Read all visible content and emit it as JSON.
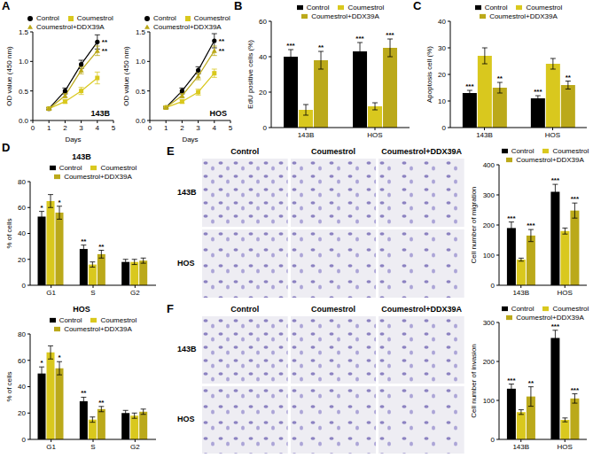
{
  "chart_data": [
    {
      "panel": "A",
      "type": "line",
      "annotation": "143B",
      "x_label": "Days",
      "y_label": "OD value (450 nm)",
      "x": [
        1,
        2,
        3,
        4
      ],
      "xlim": [
        0,
        5
      ],
      "xticks": [
        0,
        1,
        2,
        3,
        4,
        5
      ],
      "ylim": [
        0,
        1.5
      ],
      "yticks": [
        {
          "value": 0,
          "label": "0.0"
        },
        {
          "value": 0.5,
          "label": "0.5"
        },
        {
          "value": 1,
          "label": "1.0"
        },
        {
          "value": 1.5,
          "label": "1.5"
        }
      ],
      "legend": "top",
      "series": [
        {
          "name": "Control",
          "color": "#000000",
          "marker": "circle",
          "values": [
            0.2,
            0.5,
            0.95,
            1.33
          ],
          "errors": [
            0.02,
            0.05,
            0.07,
            0.12
          ],
          "significance": [
            null,
            null,
            null,
            "**"
          ]
        },
        {
          "name": "Coumestrol",
          "color": "#d9c81e",
          "marker": "square",
          "values": [
            0.2,
            0.32,
            0.5,
            0.72
          ],
          "errors": [
            0.02,
            0.03,
            0.06,
            0.1
          ],
          "significance": [
            null,
            null,
            null,
            null
          ]
        },
        {
          "name": "Coumestrol+DDX39A",
          "color": "#bba91a",
          "marker": "triangle",
          "values": [
            0.2,
            0.42,
            0.85,
            1.18
          ],
          "errors": [
            0.02,
            0.04,
            0.06,
            0.08
          ],
          "significance": [
            null,
            null,
            null,
            "**"
          ]
        }
      ]
    },
    {
      "panel": "A",
      "type": "line",
      "annotation": "HOS",
      "x_label": "Days",
      "y_label": "OD value (450 nm)",
      "x": [
        1,
        2,
        3,
        4
      ],
      "xlim": [
        0,
        5
      ],
      "xticks": [
        0,
        1,
        2,
        3,
        4,
        5
      ],
      "ylim": [
        0,
        1.5
      ],
      "yticks": [
        {
          "value": 0,
          "label": "0.0"
        },
        {
          "value": 0.5,
          "label": "0.5"
        },
        {
          "value": 1,
          "label": "1.0"
        },
        {
          "value": 1.5,
          "label": "1.5"
        }
      ],
      "legend": "top",
      "series": [
        {
          "name": "Control",
          "color": "#000000",
          "marker": "circle",
          "values": [
            0.22,
            0.5,
            0.85,
            1.35
          ],
          "errors": [
            0.02,
            0.05,
            0.06,
            0.12
          ],
          "significance": [
            null,
            null,
            null,
            "**"
          ]
        },
        {
          "name": "Coumestrol",
          "color": "#d9c81e",
          "marker": "square",
          "values": [
            0.22,
            0.32,
            0.48,
            0.8
          ],
          "errors": [
            0.02,
            0.03,
            0.05,
            0.07
          ],
          "significance": [
            null,
            null,
            null,
            null
          ]
        },
        {
          "name": "Coumestrol+DDX39A",
          "color": "#bba91a",
          "marker": "triangle",
          "values": [
            0.22,
            0.42,
            0.75,
            1.18
          ],
          "errors": [
            0.02,
            0.04,
            0.06,
            0.08
          ],
          "significance": [
            null,
            null,
            null,
            "**"
          ]
        }
      ]
    },
    {
      "panel": "B",
      "type": "bar",
      "y_label": "EdU positive cells (%)",
      "categories": [
        "143B",
        "HOS"
      ],
      "ylim": [
        0,
        60
      ],
      "yticks": [
        0,
        20,
        40,
        60
      ],
      "legend": "top",
      "series": [
        {
          "name": "Control",
          "color": "#000000",
          "values": [
            40,
            43
          ],
          "errors": [
            4,
            5
          ],
          "significance": [
            "***",
            "***"
          ]
        },
        {
          "name": "Coumestrol",
          "color": "#d9c81e",
          "values": [
            10,
            12
          ],
          "errors": [
            3,
            2
          ],
          "significance": [
            null,
            null
          ]
        },
        {
          "name": "Coumestrol+DDX39A",
          "color": "#bba91a",
          "values": [
            38,
            45
          ],
          "errors": [
            5,
            5
          ],
          "significance": [
            "**",
            "***"
          ]
        }
      ]
    },
    {
      "panel": "C",
      "type": "bar",
      "y_label": "Apoptosis cell (%)",
      "categories": [
        "143B",
        "HOS"
      ],
      "ylim": [
        0,
        40
      ],
      "yticks": [
        0,
        10,
        20,
        30,
        40
      ],
      "legend": "top",
      "series": [
        {
          "name": "Control",
          "color": "#000000",
          "values": [
            13,
            11
          ],
          "errors": [
            1,
            1
          ],
          "significance": [
            "***",
            "***"
          ]
        },
        {
          "name": "Coumestrol",
          "color": "#d9c81e",
          "values": [
            27,
            24
          ],
          "errors": [
            3,
            2
          ],
          "significance": [
            null,
            null
          ]
        },
        {
          "name": "Coumestrol+DDX39A",
          "color": "#bba91a",
          "values": [
            15,
            16
          ],
          "errors": [
            2,
            1.5
          ],
          "significance": [
            "**",
            "**"
          ]
        }
      ]
    },
    {
      "panel": "D",
      "type": "bar",
      "title": "143B",
      "y_label": "% of cells",
      "categories": [
        "G1",
        "S",
        "G2"
      ],
      "ylim": [
        0,
        80
      ],
      "yticks": [
        0,
        20,
        40,
        60,
        80
      ],
      "legend": "top",
      "series": [
        {
          "name": "Control",
          "color": "#000000",
          "values": [
            53,
            28,
            18
          ],
          "errors": [
            4,
            3,
            2
          ],
          "significance": [
            "*",
            "**",
            null
          ]
        },
        {
          "name": "Coumestrol",
          "color": "#d9c81e",
          "values": [
            65,
            16,
            18
          ],
          "errors": [
            5,
            2,
            2
          ],
          "significance": [
            null,
            null,
            null
          ]
        },
        {
          "name": "Coumestrol+DDX39A",
          "color": "#bba91a",
          "values": [
            56,
            24,
            19
          ],
          "errors": [
            5,
            3,
            2
          ],
          "significance": [
            "*",
            "**",
            null
          ]
        }
      ]
    },
    {
      "panel": "D",
      "type": "bar",
      "title": "HOS",
      "y_label": "% of cells",
      "categories": [
        "G1",
        "S",
        "G2"
      ],
      "ylim": [
        0,
        80
      ],
      "yticks": [
        0,
        20,
        40,
        60,
        80
      ],
      "legend": "top",
      "series": [
        {
          "name": "Control",
          "color": "#000000",
          "values": [
            50,
            29,
            20
          ],
          "errors": [
            5,
            3,
            2
          ],
          "significance": [
            "*",
            "**",
            null
          ]
        },
        {
          "name": "Coumestrol",
          "color": "#d9c81e",
          "values": [
            66,
            15,
            18
          ],
          "errors": [
            5,
            2,
            2
          ],
          "significance": [
            null,
            null,
            null
          ]
        },
        {
          "name": "Coumestrol+DDX39A",
          "color": "#bba91a",
          "values": [
            54,
            23,
            21
          ],
          "errors": [
            5,
            2,
            2
          ],
          "significance": [
            "*",
            "**",
            null
          ]
        }
      ]
    },
    {
      "panel": "E",
      "type": "bar",
      "y_label": "Cell number of migration",
      "categories": [
        "143B",
        "HOS"
      ],
      "ylim": [
        0,
        400
      ],
      "yticks": [
        0,
        100,
        200,
        300,
        400
      ],
      "legend": "top",
      "series": [
        {
          "name": "Control",
          "color": "#000000",
          "values": [
            190,
            310
          ],
          "errors": [
            20,
            25
          ],
          "significance": [
            "***",
            "***"
          ]
        },
        {
          "name": "Coumestrol",
          "color": "#d9c81e",
          "values": [
            85,
            180
          ],
          "errors": [
            5,
            10
          ],
          "significance": [
            null,
            null
          ]
        },
        {
          "name": "Coumestrol+DDX39A",
          "color": "#bba91a",
          "values": [
            165,
            248
          ],
          "errors": [
            20,
            25
          ],
          "significance": [
            "***",
            "***"
          ]
        }
      ]
    },
    {
      "panel": "F",
      "type": "bar",
      "y_label": "Cell number of invasion",
      "categories": [
        "143B",
        "HOS"
      ],
      "ylim": [
        0,
        300
      ],
      "yticks": [
        0,
        100,
        200,
        300
      ],
      "legend": "top",
      "series": [
        {
          "name": "Control",
          "color": "#000000",
          "values": [
            130,
            260
          ],
          "errors": [
            12,
            20
          ],
          "significance": [
            "***",
            "***"
          ]
        },
        {
          "name": "Coumestrol",
          "color": "#d9c81e",
          "values": [
            70,
            50
          ],
          "errors": [
            6,
            5
          ],
          "significance": [
            null,
            null
          ]
        },
        {
          "name": "Coumestrol+DDX39A",
          "color": "#bba91a",
          "values": [
            110,
            105
          ],
          "errors": [
            25,
            12
          ],
          "significance": [
            "**",
            "***"
          ]
        }
      ]
    }
  ],
  "image_grids": [
    {
      "panel": "E",
      "columns": [
        "Control",
        "Coumestrol",
        "Coumestrol+DDX39A"
      ],
      "rows": [
        "143B",
        "HOS"
      ]
    },
    {
      "panel": "F",
      "columns": [
        "Control",
        "Coumestrol",
        "Coumestrol+DDX39A"
      ],
      "rows": [
        "143B",
        "HOS"
      ]
    }
  ]
}
